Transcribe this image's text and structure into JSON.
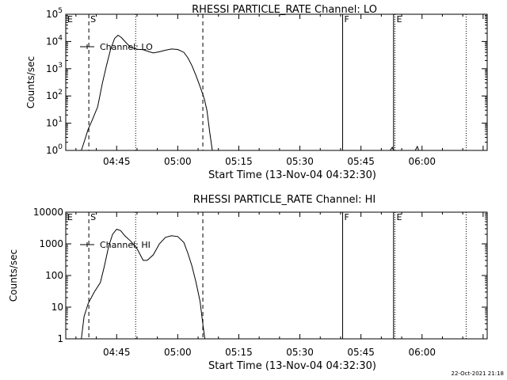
{
  "footer": {
    "timestamp": "22-Oct-2021 21:18"
  },
  "chart_data": [
    {
      "type": "line",
      "title": "RHESSI PARTICLE_RATE Channel: LO",
      "xlabel": "Start Time (13-Nov-04 04:32:30)",
      "ylabel": "Counts/sec",
      "legend": {
        "placement": "top-left",
        "label": "Channel: LO"
      },
      "x_ticks": [
        "04:45",
        "05:00",
        "05:15",
        "05:30",
        "05:45",
        "06:00"
      ],
      "y_scale": "log",
      "y_ticks": [
        {
          "value": 1,
          "label": "10",
          "exp": "0"
        },
        {
          "value": 10,
          "label": "10",
          "exp": "1"
        },
        {
          "value": 100,
          "label": "10",
          "exp": "2"
        },
        {
          "value": 1000,
          "label": "10",
          "exp": "3"
        },
        {
          "value": 10000,
          "label": "10",
          "exp": "4"
        },
        {
          "value": 100000,
          "label": "10",
          "exp": "5"
        }
      ],
      "ylim": [
        1,
        100000
      ],
      "xlim": [
        "04:32:30",
        "06:16:00"
      ],
      "markers": [
        {
          "label": "E",
          "time": "04:32:30",
          "style": "dotted"
        },
        {
          "label": "S",
          "time": "04:38:10",
          "style": "dashed"
        },
        {
          "label": "",
          "time": "04:49:40",
          "style": "dotted"
        },
        {
          "label": "",
          "time": "05:06:10",
          "style": "dashed"
        },
        {
          "label": "F",
          "time": "05:40:30",
          "style": "solid"
        },
        {
          "label": "",
          "time": "05:53:00",
          "style": "solid"
        },
        {
          "label": "E",
          "time": "05:53:20",
          "style": "dotted"
        },
        {
          "label": "",
          "time": "06:10:50",
          "style": "dotted"
        }
      ],
      "series": [
        {
          "name": "Channel: LO",
          "points": [
            [
              "04:36:20",
              1
            ],
            [
              "04:37:00",
              2
            ],
            [
              "04:38:00",
              6
            ],
            [
              "04:39:00",
              13
            ],
            [
              "04:40:20",
              40
            ],
            [
              "04:41:30",
              300
            ],
            [
              "04:42:30",
              1300
            ],
            [
              "04:43:30",
              5000
            ],
            [
              "04:44:30",
              13000
            ],
            [
              "04:45:20",
              17000
            ],
            [
              "04:46:10",
              14000
            ],
            [
              "04:47:20",
              9000
            ],
            [
              "04:48:30",
              6000
            ],
            [
              "04:50:00",
              5200
            ],
            [
              "04:51:30",
              5000
            ],
            [
              "04:53:00",
              4200
            ],
            [
              "04:54:00",
              3800
            ],
            [
              "04:55:30",
              4200
            ],
            [
              "04:57:00",
              4800
            ],
            [
              "04:58:30",
              5300
            ],
            [
              "05:00:00",
              5100
            ],
            [
              "05:01:30",
              4000
            ],
            [
              "05:02:30",
              2500
            ],
            [
              "05:03:30",
              1300
            ],
            [
              "05:04:30",
              550
            ],
            [
              "05:05:30",
              220
            ],
            [
              "05:06:30",
              80
            ],
            [
              "05:07:10",
              30
            ],
            [
              "05:07:50",
              5
            ],
            [
              "05:08:30",
              1
            ]
          ]
        },
        {
          "name": "",
          "points": [
            [
              "05:52:10",
              1
            ],
            [
              "05:52:40",
              1.3
            ],
            [
              "05:53:00",
              1
            ]
          ]
        },
        {
          "name": "",
          "points": [
            [
              "05:58:20",
              1
            ],
            [
              "05:58:50",
              1.4
            ],
            [
              "05:59:10",
              1
            ]
          ]
        }
      ]
    },
    {
      "type": "line",
      "title": "RHESSI PARTICLE_RATE Channel: HI",
      "xlabel": "Start Time (13-Nov-04 04:32:30)",
      "ylabel": "Counts/sec",
      "legend": {
        "placement": "top-left",
        "label": "Channel: HI"
      },
      "x_ticks": [
        "04:45",
        "05:00",
        "05:15",
        "05:30",
        "05:45",
        "06:00"
      ],
      "y_scale": "log",
      "y_ticks": [
        {
          "value": 1,
          "label": "1",
          "exp": ""
        },
        {
          "value": 10,
          "label": "10",
          "exp": ""
        },
        {
          "value": 100,
          "label": "100",
          "exp": ""
        },
        {
          "value": 1000,
          "label": "1000",
          "exp": ""
        },
        {
          "value": 10000,
          "label": "10000",
          "exp": ""
        }
      ],
      "ylim": [
        1,
        10000
      ],
      "xlim": [
        "04:32:30",
        "06:16:00"
      ],
      "markers": [
        {
          "label": "E",
          "time": "04:32:30",
          "style": "dotted"
        },
        {
          "label": "S",
          "time": "04:38:10",
          "style": "dashed"
        },
        {
          "label": "",
          "time": "04:49:40",
          "style": "dotted"
        },
        {
          "label": "",
          "time": "05:06:10",
          "style": "dashed"
        },
        {
          "label": "F",
          "time": "05:40:30",
          "style": "solid"
        },
        {
          "label": "",
          "time": "05:53:00",
          "style": "solid"
        },
        {
          "label": "E",
          "time": "05:53:20",
          "style": "dotted"
        },
        {
          "label": "",
          "time": "06:10:50",
          "style": "dotted"
        }
      ],
      "series": [
        {
          "name": "Channel: HI",
          "points": [
            [
              "04:36:20",
              1
            ],
            [
              "04:37:00",
              5
            ],
            [
              "04:38:00",
              13
            ],
            [
              "04:39:30",
              30
            ],
            [
              "04:41:00",
              60
            ],
            [
              "04:42:00",
              200
            ],
            [
              "04:43:00",
              800
            ],
            [
              "04:44:00",
              2000
            ],
            [
              "04:45:00",
              2900
            ],
            [
              "04:46:00",
              2600
            ],
            [
              "04:47:00",
              1800
            ],
            [
              "04:48:30",
              1200
            ],
            [
              "04:50:00",
              700
            ],
            [
              "04:51:30",
              300
            ],
            [
              "04:52:30",
              300
            ],
            [
              "04:54:00",
              450
            ],
            [
              "04:55:30",
              1000
            ],
            [
              "04:57:00",
              1600
            ],
            [
              "04:58:30",
              1800
            ],
            [
              "05:00:00",
              1700
            ],
            [
              "05:01:30",
              1100
            ],
            [
              "05:02:30",
              500
            ],
            [
              "05:03:30",
              200
            ],
            [
              "05:04:30",
              60
            ],
            [
              "05:05:30",
              15
            ],
            [
              "05:06:10",
              3
            ],
            [
              "05:06:40",
              1
            ]
          ]
        }
      ]
    }
  ]
}
